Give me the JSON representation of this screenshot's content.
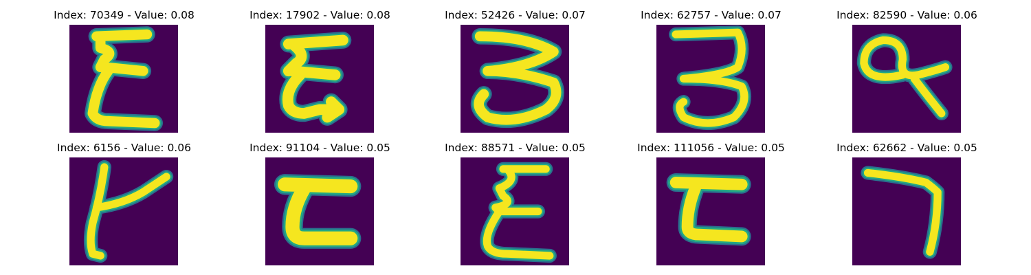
{
  "palette": {
    "background": "#440154",
    "outline_outer": "#2a6f8e",
    "outline_inner": "#22a884",
    "stroke": "#f5e61f"
  },
  "panels": [
    {
      "index": "70349",
      "value": "0.08",
      "title": "Index: 70349 - Value: 0.08",
      "glyph": "handwritten-E-like-character"
    },
    {
      "index": "17902",
      "value": "0.08",
      "title": "Index: 17902 - Value: 0.08",
      "glyph": "handwritten-E-like-character"
    },
    {
      "index": "52426",
      "value": "0.07",
      "title": "Index: 52426 - Value: 0.07",
      "glyph": "handwritten-3-like-character"
    },
    {
      "index": "62757",
      "value": "0.07",
      "title": "Index: 62757 - Value: 0.07",
      "glyph": "handwritten-3-like-character"
    },
    {
      "index": "82590",
      "value": "0.06",
      "title": "Index: 82590 - Value: 0.06",
      "glyph": "handwritten-q-like-character"
    },
    {
      "index": "6156",
      "value": "0.06",
      "title": "Index: 6156 - Value: 0.06",
      "glyph": "handwritten-y-like-character"
    },
    {
      "index": "91104",
      "value": "0.05",
      "title": "Index: 91104 - Value: 0.05",
      "glyph": "handwritten-c-like-character"
    },
    {
      "index": "88571",
      "value": "0.05",
      "title": "Index: 88571 - Value: 0.05",
      "glyph": "handwritten-E-like-character"
    },
    {
      "index": "111056",
      "value": "0.05",
      "title": "Index: 111056 - Value: 0.05",
      "glyph": "handwritten-c-like-character"
    },
    {
      "index": "62662",
      "value": "0.05",
      "title": "Index: 62662 - Value: 0.05",
      "glyph": "handwritten-7-like-character"
    }
  ]
}
